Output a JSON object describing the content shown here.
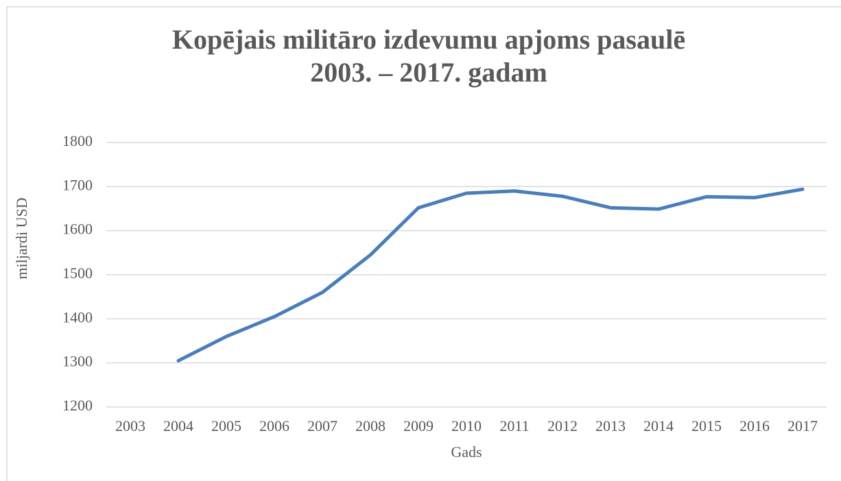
{
  "chart_data": {
    "type": "line",
    "title": [
      "Kopējais militāro izdevumu apjoms pasaulē",
      "2003. – 2017. gadam"
    ],
    "x_label": "Gads",
    "y_label": "miljardi USD",
    "categories": [
      "2003",
      "2004",
      "2005",
      "2006",
      "2007",
      "2008",
      "2009",
      "2010",
      "2011",
      "2012",
      "2013",
      "2014",
      "2015",
      "2016",
      "2017"
    ],
    "series": [
      {
        "name": "miljardi USD",
        "color": "#4a7ebb",
        "values": [
          null,
          1305,
          1360,
          1405,
          1460,
          1545,
          1652,
          1685,
          1690,
          1678,
          1652,
          1649,
          1677,
          1675,
          1694
        ]
      }
    ],
    "ylim": [
      1200,
      1800
    ],
    "yticks": [
      1200,
      1300,
      1400,
      1500,
      1600,
      1700,
      1800
    ],
    "grid": true
  }
}
